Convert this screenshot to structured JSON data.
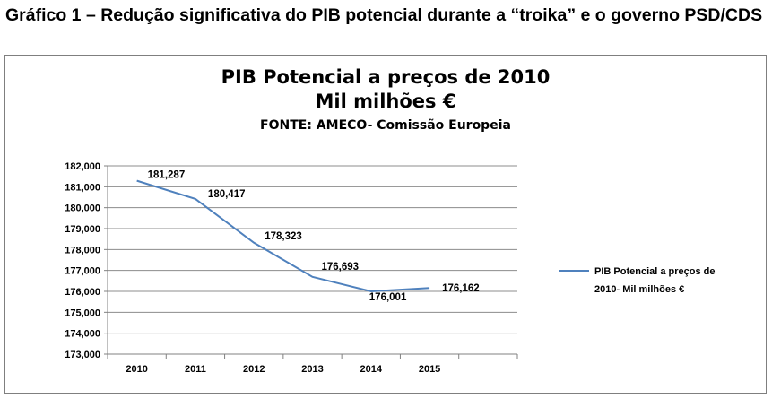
{
  "caption": "Gráfico 1 – Redução significativa do PIB potencial durante a “troika” e o governo PSD/CDS",
  "chart_data": {
    "type": "line",
    "title": "PIB Potencial a preços de 2010",
    "subtitle": "Mil milhões €",
    "source": "FONTE: AMECO- Comissão Europeia",
    "categories": [
      "2010",
      "2011",
      "2012",
      "2013",
      "2014",
      "2015"
    ],
    "series": [
      {
        "name": "PIB Potencial  a preços de 2010- Mil milhões €",
        "name_line1": "PIB Potencial  a preços de",
        "name_line2": "2010- Mil milhões €",
        "values": [
          181.287,
          180.417,
          178.323,
          176.693,
          176.001,
          176.162
        ],
        "labels": [
          "181,287",
          "180,417",
          "178,323",
          "176,693",
          "176,001",
          "176,162"
        ],
        "color": "#4f81bd"
      }
    ],
    "yticks": [
      173000,
      174000,
      175000,
      176000,
      177000,
      178000,
      179000,
      180000,
      181000,
      182000
    ],
    "ytick_labels": [
      "173,000",
      "174,000",
      "175,000",
      "176,000",
      "177,000",
      "178,000",
      "179,000",
      "180,000",
      "181,000",
      "182,000"
    ],
    "ylim": [
      173000,
      182000
    ],
    "grid": true,
    "legend_position": "right"
  }
}
